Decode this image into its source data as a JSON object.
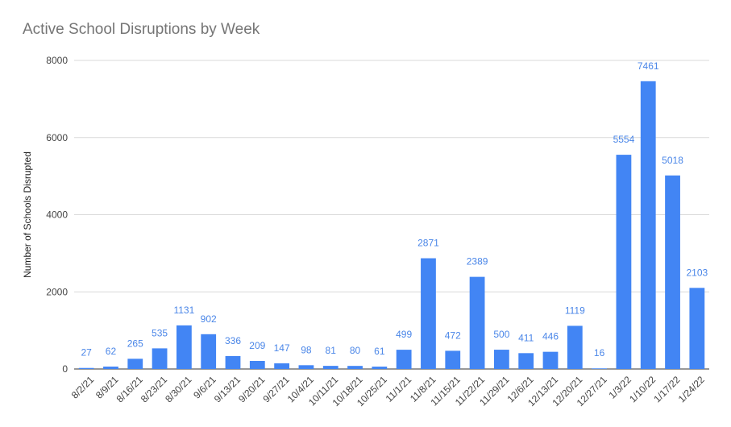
{
  "chart_data": {
    "type": "bar",
    "title": "Active School Disruptions by Week",
    "xlabel": "",
    "ylabel": "Number of Schools Disrupted",
    "ylim": [
      0,
      8000
    ],
    "yticks": [
      0,
      2000,
      4000,
      6000,
      8000
    ],
    "grid": true,
    "legend": "none",
    "bar_color": "#4285f4",
    "label_color": "#4a86e8",
    "categories": [
      "8/2/21",
      "8/9/21",
      "8/16/21",
      "8/23/21",
      "8/30/21",
      "9/6/21",
      "9/13/21",
      "9/20/21",
      "9/27/21",
      "10/4/21",
      "10/11/21",
      "10/18/21",
      "10/25/21",
      "11/1/21",
      "11/8/21",
      "11/15/21",
      "11/22/21",
      "11/29/21",
      "12/6/21",
      "12/13/21",
      "12/20/21",
      "12/27/21",
      "1/3/22",
      "1/10/22",
      "1/17/22",
      "1/24/22"
    ],
    "values": [
      27,
      62,
      265,
      535,
      1131,
      902,
      336,
      209,
      147,
      98,
      81,
      80,
      61,
      499,
      2871,
      472,
      2389,
      500,
      411,
      446,
      1119,
      16,
      5554,
      7461,
      5018,
      2103
    ]
  }
}
